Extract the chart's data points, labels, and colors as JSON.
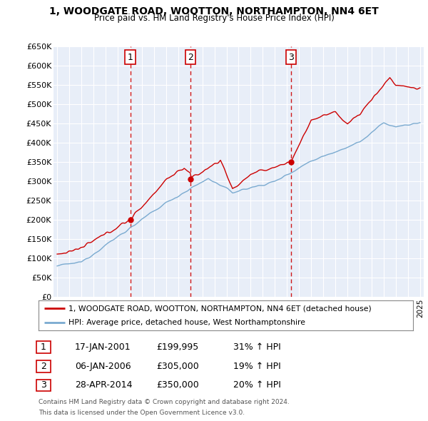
{
  "title": "1, WOODGATE ROAD, WOOTTON, NORTHAMPTON, NN4 6ET",
  "subtitle": "Price paid vs. HM Land Registry's House Price Index (HPI)",
  "legend_label_red": "1, WOODGATE ROAD, WOOTTON, NORTHAMPTON, NN4 6ET (detached house)",
  "legend_label_blue": "HPI: Average price, detached house, West Northamptonshire",
  "ylabel_ticks": [
    "£0",
    "£50K",
    "£100K",
    "£150K",
    "£200K",
    "£250K",
    "£300K",
    "£350K",
    "£400K",
    "£450K",
    "£500K",
    "£550K",
    "£600K",
    "£650K"
  ],
  "ytick_values": [
    0,
    50000,
    100000,
    150000,
    200000,
    250000,
    300000,
    350000,
    400000,
    450000,
    500000,
    550000,
    600000,
    650000
  ],
  "purchases": [
    {
      "num": 1,
      "date_str": "17-JAN-2001",
      "date_x": 2001.04,
      "price": 199995,
      "hpi_pct": "31% ↑ HPI"
    },
    {
      "num": 2,
      "date_str": "06-JAN-2006",
      "date_x": 2006.02,
      "price": 305000,
      "hpi_pct": "19% ↑ HPI"
    },
    {
      "num": 3,
      "date_str": "28-APR-2014",
      "date_x": 2014.32,
      "price": 350000,
      "hpi_pct": "20% ↑ HPI"
    }
  ],
  "table_rows": [
    [
      "1",
      "17-JAN-2001",
      "£199,995",
      "31% ↑ HPI"
    ],
    [
      "2",
      "06-JAN-2006",
      "£305,000",
      "19% ↑ HPI"
    ],
    [
      "3",
      "28-APR-2014",
      "£350,000",
      "20% ↑ HPI"
    ]
  ],
  "footnote1": "Contains HM Land Registry data © Crown copyright and database right 2024.",
  "footnote2": "This data is licensed under the Open Government Licence v3.0.",
  "bg_color": "#ffffff",
  "plot_bg_color": "#e8eef8",
  "grid_color": "#ffffff",
  "red_color": "#cc0000",
  "blue_color": "#7aaad0",
  "dashed_color": "#cc0000",
  "xlim": [
    1994.7,
    2025.3
  ],
  "ylim": [
    0,
    650000
  ]
}
